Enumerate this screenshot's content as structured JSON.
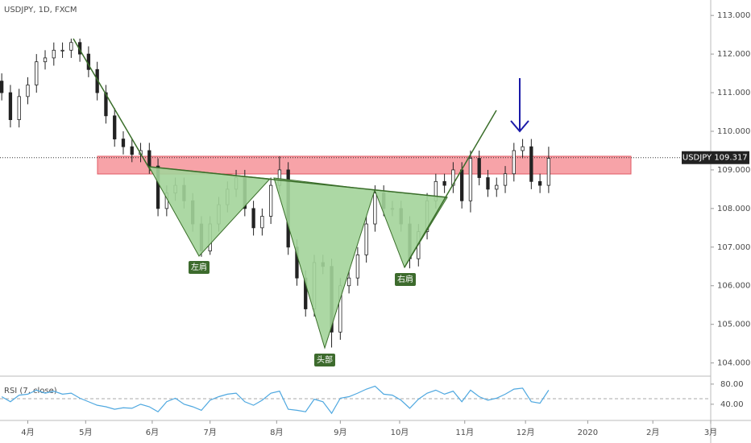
{
  "chart_data": {
    "type": "candlestick",
    "title": "USDJPY, 1D, FXCM",
    "symbol": "USDJPY",
    "last_price": 109.317,
    "x": [
      0,
      3,
      6,
      9,
      12,
      15,
      18,
      21,
      24,
      27,
      30,
      33,
      36,
      39,
      42,
      45,
      48,
      51,
      54,
      57,
      60,
      63,
      66,
      69,
      72,
      75,
      78,
      81,
      84,
      87,
      90,
      93,
      96,
      99,
      102,
      105,
      108,
      111,
      114,
      117,
      120,
      123,
      126,
      129,
      132,
      135,
      138,
      141,
      144,
      147,
      150,
      153,
      156,
      159,
      162,
      165,
      168,
      171,
      174,
      177,
      180,
      183,
      186,
      189
    ],
    "open": [
      111.3,
      111.0,
      110.3,
      110.9,
      111.2,
      111.8,
      111.9,
      112.1,
      112.1,
      112.3,
      112.0,
      111.6,
      111.0,
      110.4,
      109.8,
      109.6,
      109.4,
      109.5,
      109.1,
      108.0,
      108.4,
      108.6,
      108.2,
      107.6,
      106.9,
      107.6,
      108.1,
      108.5,
      108.8,
      108.0,
      107.5,
      107.8,
      108.6,
      109.0,
      107.0,
      106.2,
      105.4,
      106.6,
      106.5,
      104.8,
      106.0,
      106.2,
      106.8,
      107.6,
      108.4,
      108.0,
      108.0,
      107.6,
      106.7,
      107.4,
      108.2,
      108.7,
      108.6,
      109.0,
      108.2,
      109.3,
      108.8,
      108.5,
      108.6,
      108.9,
      109.5,
      109.6,
      108.7,
      108.6
    ],
    "high": [
      111.5,
      111.2,
      111.1,
      111.4,
      112.0,
      112.1,
      112.3,
      112.3,
      112.4,
      112.4,
      112.2,
      111.8,
      111.2,
      110.6,
      110.0,
      109.8,
      109.7,
      109.7,
      109.3,
      108.6,
      108.8,
      108.8,
      108.4,
      107.8,
      107.8,
      108.3,
      108.7,
      109.0,
      109.0,
      108.2,
      108.0,
      108.8,
      109.35,
      109.2,
      107.2,
      106.4,
      106.8,
      106.8,
      106.7,
      106.2,
      106.4,
      107.0,
      107.8,
      108.6,
      108.6,
      108.2,
      108.2,
      107.8,
      107.6,
      108.4,
      108.9,
      108.9,
      109.2,
      109.2,
      109.5,
      109.5,
      109.0,
      108.8,
      109.1,
      109.7,
      109.8,
      109.8,
      108.9,
      109.6
    ],
    "low": [
      110.8,
      110.1,
      110.1,
      110.7,
      111.0,
      111.6,
      111.7,
      111.9,
      111.9,
      111.8,
      111.4,
      110.8,
      110.2,
      109.6,
      109.4,
      109.2,
      109.2,
      108.9,
      107.8,
      107.8,
      108.2,
      108.0,
      107.4,
      106.75,
      106.8,
      107.4,
      107.9,
      108.3,
      107.8,
      107.3,
      107.3,
      107.6,
      108.4,
      106.8,
      106.0,
      105.2,
      105.2,
      106.3,
      104.4,
      104.6,
      105.8,
      106.0,
      106.6,
      107.4,
      107.8,
      107.8,
      107.4,
      106.45,
      106.5,
      107.2,
      108.0,
      108.4,
      108.4,
      108.0,
      107.9,
      108.6,
      108.3,
      108.3,
      108.4,
      108.7,
      109.3,
      108.5,
      108.4,
      108.4
    ],
    "close": [
      111.0,
      110.3,
      110.9,
      111.2,
      111.8,
      111.9,
      112.1,
      112.1,
      112.3,
      112.0,
      111.6,
      111.0,
      110.4,
      109.8,
      109.6,
      109.4,
      109.5,
      109.1,
      108.0,
      108.4,
      108.6,
      108.2,
      107.6,
      106.9,
      107.6,
      108.1,
      108.5,
      108.8,
      108.0,
      107.5,
      107.8,
      108.6,
      109.0,
      107.0,
      106.2,
      105.4,
      106.6,
      106.5,
      104.8,
      106.0,
      106.2,
      106.8,
      107.6,
      108.4,
      108.0,
      108.0,
      107.6,
      106.7,
      107.4,
      108.2,
      108.7,
      108.6,
      109.0,
      108.2,
      109.3,
      108.8,
      108.5,
      108.6,
      108.9,
      109.5,
      109.6,
      108.7,
      108.6,
      109.3
    ],
    "xlim": [
      -0.6,
      245
    ],
    "xticks": [
      {
        "value": 9,
        "label": "4月"
      },
      {
        "value": 29,
        "label": "5月"
      },
      {
        "value": 52,
        "label": "6月"
      },
      {
        "value": 72,
        "label": "7月"
      },
      {
        "value": 95,
        "label": "8月"
      },
      {
        "value": 117,
        "label": "9月"
      },
      {
        "value": 137.5,
        "label": "10月"
      },
      {
        "value": 160,
        "label": "11月"
      },
      {
        "value": 181,
        "label": "12月"
      },
      {
        "value": 202.5,
        "label": "2020"
      },
      {
        "value": 225,
        "label": "2月"
      },
      {
        "value": 245,
        "label": "3月"
      }
    ],
    "ylim": [
      103.7,
      113.4
    ],
    "yticks": [
      {
        "value": 104,
        "label": "104.000"
      },
      {
        "value": 105,
        "label": "105.000"
      },
      {
        "value": 106,
        "label": "106.000"
      },
      {
        "value": 107,
        "label": "107.000"
      },
      {
        "value": 108,
        "label": "108.000"
      },
      {
        "value": 109,
        "label": "109.000"
      },
      {
        "value": 110,
        "label": "110.000"
      },
      {
        "value": 111,
        "label": "111.000"
      },
      {
        "value": 112,
        "label": "112.000"
      },
      {
        "value": 113,
        "label": "113.000"
      }
    ],
    "annotations": [
      "左肩",
      "头部",
      "右肩"
    ],
    "rsi": {
      "name": "RSI (7, close)",
      "color": "#4fa8e0",
      "values": [
        55,
        45,
        58,
        60,
        68,
        62,
        66,
        60,
        62,
        52,
        45,
        38,
        35,
        30,
        33,
        32,
        40,
        35,
        25,
        45,
        52,
        40,
        35,
        28,
        48,
        55,
        60,
        62,
        45,
        38,
        48,
        62,
        66,
        30,
        28,
        25,
        50,
        45,
        22,
        52,
        55,
        62,
        70,
        76,
        60,
        58,
        48,
        32,
        50,
        62,
        68,
        60,
        66,
        45,
        68,
        55,
        48,
        52,
        60,
        70,
        72,
        45,
        42,
        68
      ],
      "ylim": [
        11,
        91
      ],
      "yticks": [
        {
          "value": 80,
          "label": "80.00"
        },
        {
          "value": 40,
          "label": "40.00"
        }
      ]
    }
  }
}
